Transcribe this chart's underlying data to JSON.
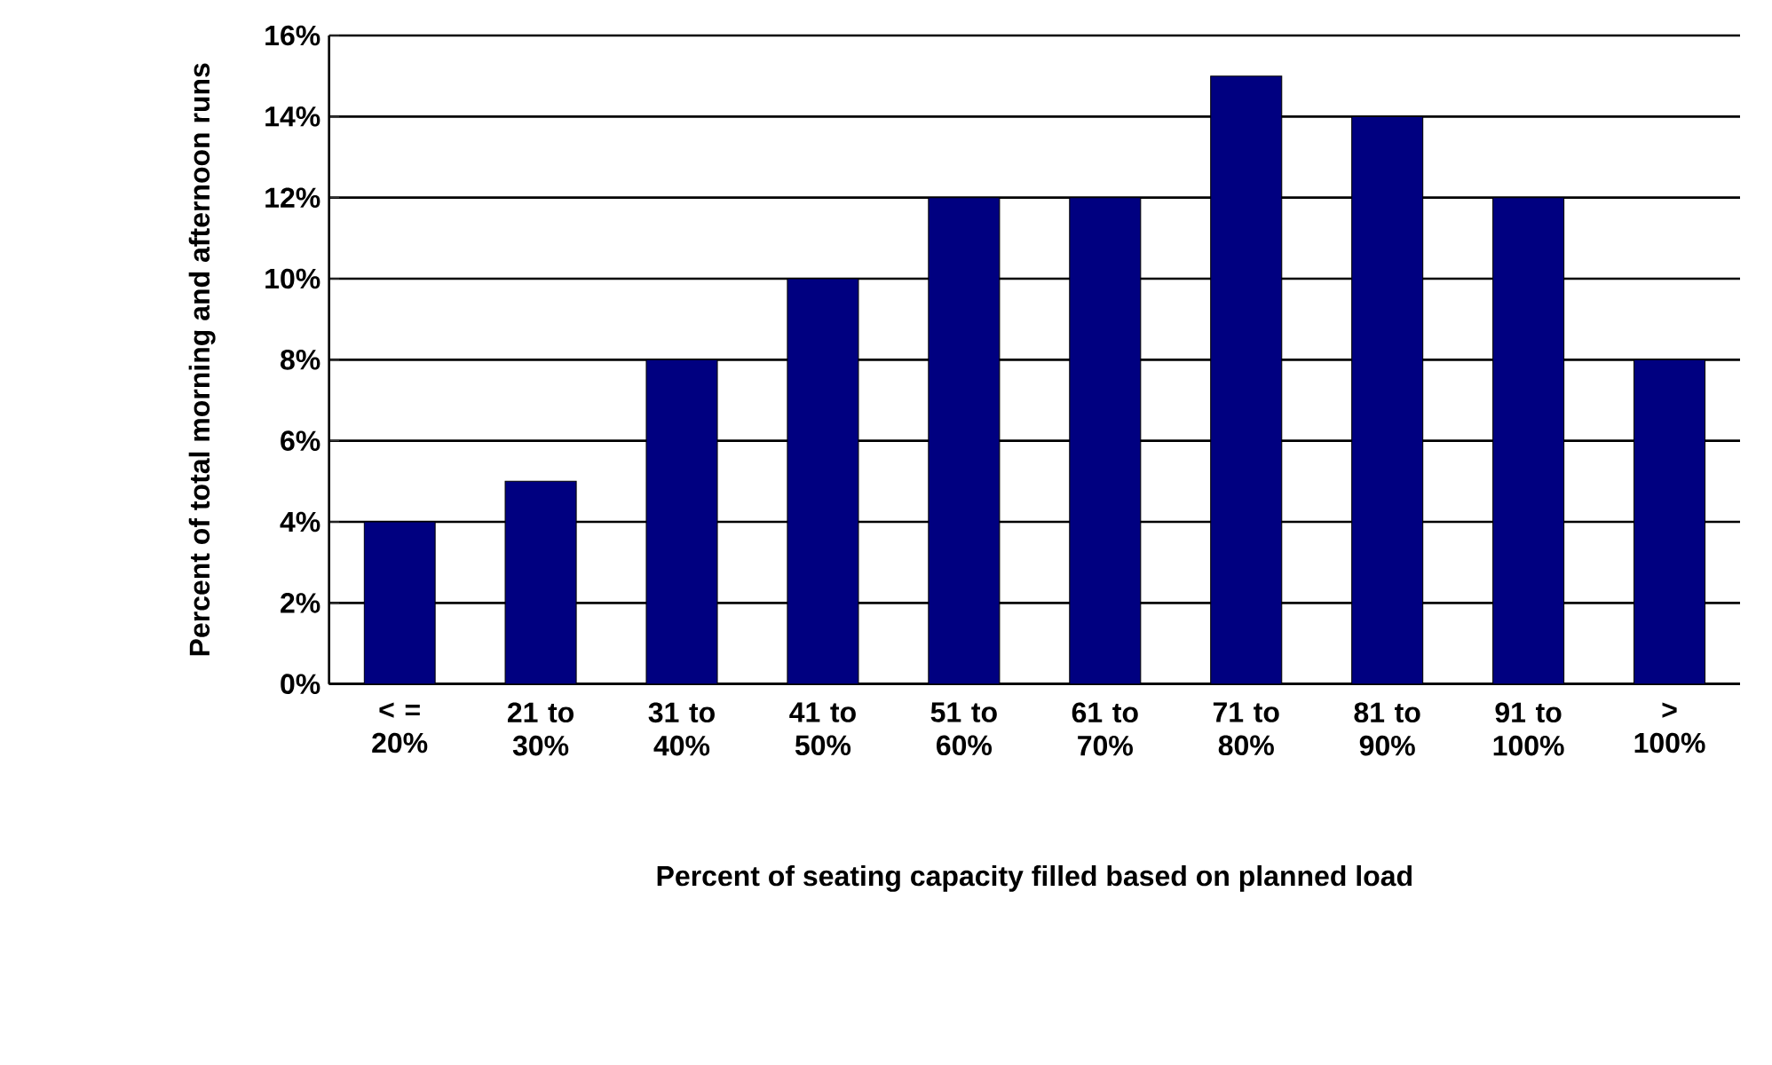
{
  "chart_data": {
    "type": "bar",
    "xlabel": "Percent of seating capacity filled based on planned load",
    "ylabel": "Percent of total morning and afternoon runs",
    "categories": [
      "< = 20%",
      "21 to 30%",
      "31 to 40%",
      "41 to 50%",
      "51 to 60%",
      "61 to 70%",
      "71 to 80%",
      "81 to 90%",
      "91 to 100%",
      "> 100%"
    ],
    "values": [
      4,
      5,
      8,
      10,
      12,
      12,
      15,
      14,
      12,
      8
    ],
    "color": "#000080",
    "ylim": [
      0,
      16
    ],
    "yticks": [
      {
        "value": 0,
        "label": "0%"
      },
      {
        "value": 2,
        "label": "2%"
      },
      {
        "value": 4,
        "label": "4%"
      },
      {
        "value": 6,
        "label": "6%"
      },
      {
        "value": 8,
        "label": "8%"
      },
      {
        "value": 10,
        "label": "10%"
      },
      {
        "value": 12,
        "label": "12%"
      },
      {
        "value": 14,
        "label": "14%"
      },
      {
        "value": 16,
        "label": "16%"
      }
    ],
    "grid": "y"
  }
}
